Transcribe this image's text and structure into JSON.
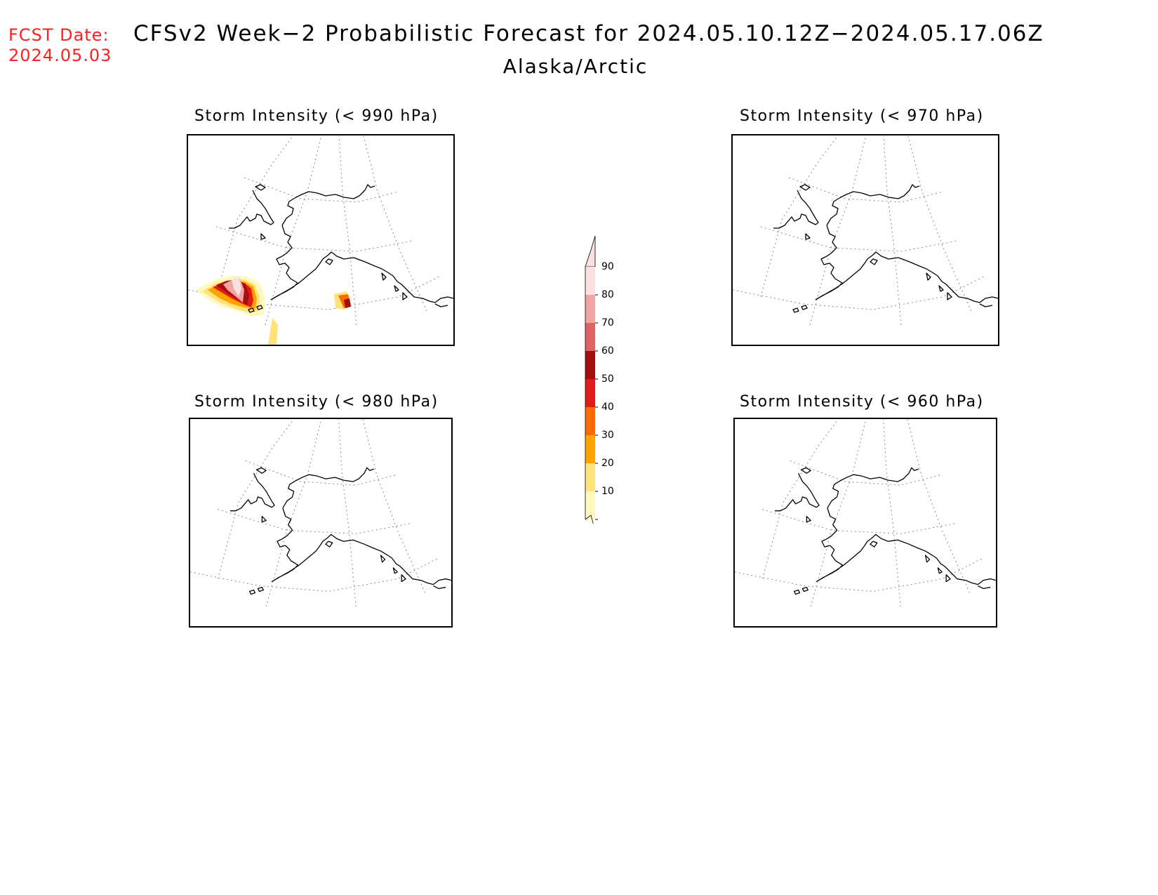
{
  "header": {
    "fcst_label": "FCST Date:",
    "fcst_date": "2024.05.03",
    "title": "CFSv2 Week−2 Probabilistic Forecast for 2024.05.10.12Z−2024.05.17.06Z",
    "subtitle": "Alaska/Arctic"
  },
  "panels": [
    {
      "title": "Storm Intensity (< 990 hPa)",
      "threshold_hPa": 990,
      "has_probability_shading": true
    },
    {
      "title": "Storm Intensity (< 970 hPa)",
      "threshold_hPa": 970,
      "has_probability_shading": false
    },
    {
      "title": "Storm Intensity (< 980 hPa)",
      "threshold_hPa": 980,
      "has_probability_shading": false
    },
    {
      "title": "Storm Intensity (< 960 hPa)",
      "threshold_hPa": 960,
      "has_probability_shading": false
    }
  ],
  "colorbar": {
    "labels": [
      "90",
      "80",
      "70",
      "60",
      "50",
      "40",
      "30",
      "20",
      "10"
    ],
    "colors": [
      "#f9e1e1",
      "#f2a4a4",
      "#df6464",
      "#a50f0f",
      "#e31a1c",
      "#ff6a00",
      "#ffa300",
      "#ffe27a",
      "#fff9bf"
    ]
  },
  "map_colors": {
    "coast": "#000000",
    "grid": "#888888"
  }
}
